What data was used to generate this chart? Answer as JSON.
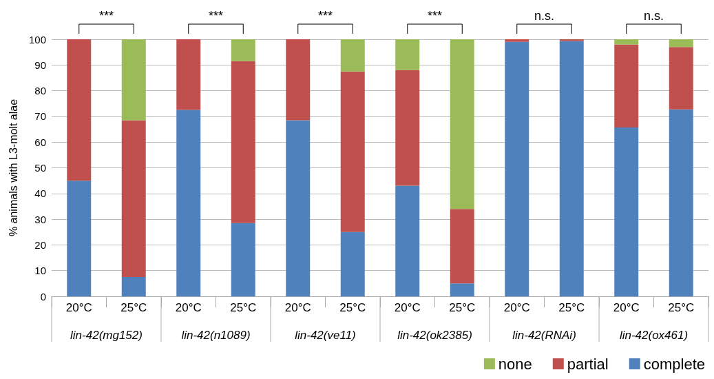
{
  "chart_data": {
    "type": "bar",
    "ylabel": "% animals with L3-molt alae",
    "categories": [
      "20°C",
      "25°C",
      "20°C",
      "25°C",
      "20°C",
      "25°C",
      "20°C",
      "25°C",
      "20°C",
      "25°C",
      "20°C",
      "25°C"
    ],
    "series": [
      {
        "name": "complete",
        "color": "#4f81bd",
        "values": [
          45,
          7.5,
          72.5,
          28.5,
          68.5,
          25,
          43,
          5,
          99,
          99.3,
          65.7,
          72.7
        ]
      },
      {
        "name": "partial",
        "color": "#c0504d",
        "values": [
          55,
          61,
          27.5,
          63,
          31.5,
          62.5,
          45,
          29,
          1,
          0.7,
          32.3,
          24.3
        ]
      },
      {
        "name": "none",
        "color": "#9bbb59",
        "values": [
          0,
          31.5,
          0,
          8.5,
          0,
          12.5,
          12,
          66,
          0,
          0,
          2,
          3
        ]
      }
    ],
    "stacked": true,
    "ylim": [
      0,
      100
    ],
    "yticks": [
      0,
      10,
      20,
      30,
      40,
      50,
      60,
      70,
      80,
      90,
      100
    ],
    "grid": "y",
    "legend": "bottom right",
    "annotations": [
      "lin-42(mg152)",
      "lin-42(n1089)",
      "lin-42(ve11)",
      "lin-42(ok2385)",
      "lin-42(RNAi)",
      "lin-42(ox461)",
      "***",
      "***",
      "***",
      "***",
      "n.s.",
      "n.s."
    ]
  }
}
